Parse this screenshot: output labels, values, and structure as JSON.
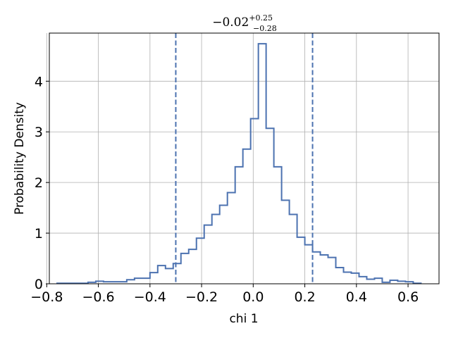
{
  "chart_data": {
    "type": "histogram",
    "title": {
      "main": "−0.02",
      "sup": "+0.25",
      "sub": "−0.28"
    },
    "xlabel": "chi 1",
    "ylabel": "Probability Density",
    "xlim": [
      -0.79,
      0.72
    ],
    "ylim": [
      0,
      4.95
    ],
    "xticks": [
      -0.8,
      -0.6,
      -0.4,
      -0.2,
      0.0,
      0.2,
      0.4,
      0.6
    ],
    "xtick_labels": [
      "−0.8",
      "−0.6",
      "−0.4",
      "−0.2",
      "0.0",
      "0.2",
      "0.4",
      "0.6"
    ],
    "yticks": [
      0,
      1,
      2,
      3,
      4
    ],
    "ytick_labels": [
      "0",
      "1",
      "2",
      "3",
      "4"
    ],
    "grid": true,
    "series_color": "#4c72b0",
    "bin_edges": [
      -0.76,
      -0.73,
      -0.7,
      -0.67,
      -0.64,
      -0.61,
      -0.58,
      -0.55,
      -0.52,
      -0.49,
      -0.46,
      -0.43,
      -0.4,
      -0.37,
      -0.34,
      -0.31,
      -0.28,
      -0.25,
      -0.22,
      -0.19,
      -0.16,
      -0.13,
      -0.1,
      -0.07,
      -0.04,
      -0.01,
      0.02,
      0.05,
      0.08,
      0.11,
      0.14,
      0.17,
      0.2,
      0.23,
      0.26,
      0.29,
      0.32,
      0.35,
      0.38,
      0.41,
      0.44,
      0.47,
      0.5,
      0.53,
      0.56,
      0.59,
      0.62,
      0.65
    ],
    "densities": [
      0.01,
      0.01,
      0.01,
      0.01,
      0.03,
      0.05,
      0.04,
      0.04,
      0.04,
      0.08,
      0.11,
      0.11,
      0.22,
      0.36,
      0.3,
      0.4,
      0.6,
      0.68,
      0.9,
      1.16,
      1.37,
      1.55,
      1.8,
      2.31,
      2.66,
      3.26,
      4.74,
      3.07,
      2.31,
      1.65,
      1.37,
      0.92,
      0.77,
      0.63,
      0.57,
      0.52,
      0.32,
      0.23,
      0.21,
      0.14,
      0.09,
      0.11,
      0.03,
      0.07,
      0.05,
      0.04,
      0.01
    ],
    "vlines": [
      -0.3,
      0.23
    ]
  }
}
